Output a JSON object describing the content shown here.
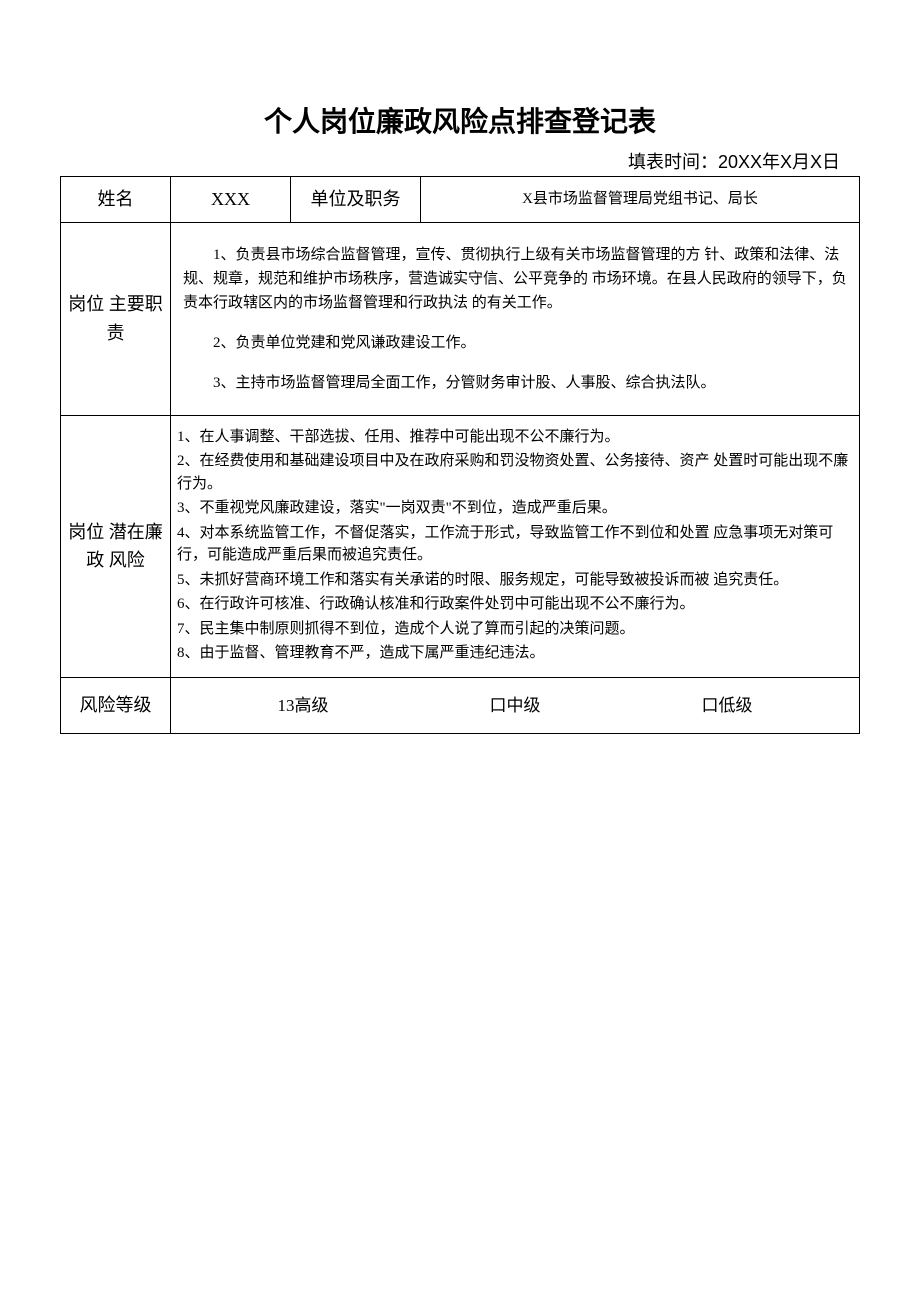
{
  "title": "个人岗位廉政风险点排查登记表",
  "fill_time_label": "填表时间：20XX年X月X日",
  "row1": {
    "name_label": "姓名",
    "name_value": "XXX",
    "unit_label": "单位及职务",
    "unit_value": "X县市场监督管理局党组书记、局长"
  },
  "row2": {
    "label": "岗位 主要职责",
    "duties": [
      "1、负责县市场综合监督管理，宣传、贯彻执行上级有关市场监督管理的方 针、政策和法律、法规、规章，规范和维护市场秩序，营造诚实守信、公平竞争的 市场环境。在县人民政府的领导下，负责本行政辖区内的市场监督管理和行政执法 的有关工作。",
      "2、负责单位党建和党风谦政建设工作。",
      "3、主持市场监督管理局全面工作，分管财务审计股、人事股、综合执法队。"
    ]
  },
  "row3": {
    "label": "岗位 潜在廉政 风险",
    "risks": [
      "1、在人事调整、干部选拔、任用、推荐中可能出现不公不廉行为。",
      "2、在经费使用和基础建设项目中及在政府采购和罚没物资处置、公务接待、资产 处置时可能出现不廉行为。",
      "3、不重视党风廉政建设，落实\"一岗双责\"不到位，造成严重后果。",
      "4、对本系统监管工作，不督促落实，工作流于形式，导致监管工作不到位和处置 应急事项无对策可行，可能造成严重后果而被追究责任。",
      "5、未抓好营商环境工作和落实有关承诺的时限、服务规定，可能导致被投诉而被 追究责任。",
      "6、在行政许可核准、行政确认核准和行政案件处罚中可能出现不公不廉行为。",
      "7、民主集中制原则抓得不到位，造成个人说了算而引起的决策问题。",
      "8、由于监督、管理教育不严，造成下属严重违纪违法。"
    ]
  },
  "row4": {
    "label": "风险等级",
    "options": {
      "high": "13高级",
      "mid": "口中级",
      "low": "口低级"
    }
  }
}
